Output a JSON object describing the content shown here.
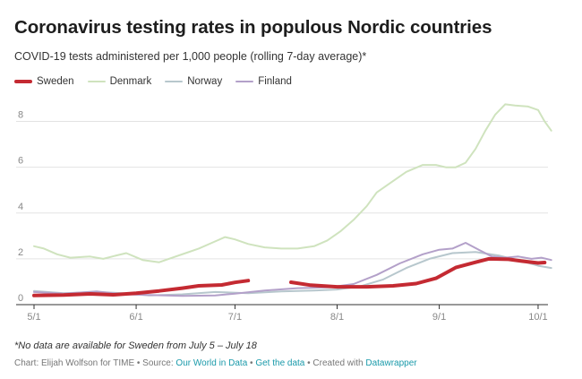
{
  "title": "Coronavirus testing rates in populous Nordic countries",
  "subtitle": "COVID-19 tests administered per 1,000 people (rolling 7-day average)*",
  "footnote": "*No data are available for Sweden from July 5 – July 18",
  "credits": {
    "prefix": "Chart: Elijah Wolfson for TIME • Source: ",
    "source": "Our World in Data",
    "sep1": " • ",
    "getdata": "Get the data",
    "sep2": " • Created with ",
    "tool": "Datawrapper"
  },
  "colors": {
    "Sweden": "#c42a32",
    "Denmark": "#cfe3be",
    "Norway": "#b7c7cd",
    "Finland": "#b3a0c9",
    "grid": "#e3e3e3",
    "axis": "#333333",
    "tick_text": "#888888"
  },
  "chart_data": {
    "type": "line",
    "x_unit": "date (2020)",
    "xlim": [
      "2020-05-01",
      "2020-10-04"
    ],
    "ylim": [
      0,
      9
    ],
    "yticks": [
      0,
      2,
      4,
      6,
      8
    ],
    "xticks": [
      {
        "date": "2020-05-01",
        "label": "5/1"
      },
      {
        "date": "2020-06-01",
        "label": "6/1"
      },
      {
        "date": "2020-07-01",
        "label": "7/1"
      },
      {
        "date": "2020-08-01",
        "label": "8/1"
      },
      {
        "date": "2020-09-01",
        "label": "9/1"
      },
      {
        "date": "2020-10-01",
        "label": "10/1"
      }
    ],
    "grid": true,
    "legend": "top-left",
    "series": [
      {
        "name": "Sweden",
        "segments": [
          [
            [
              "2020-05-01",
              0.4
            ],
            [
              "2020-05-10",
              0.42
            ],
            [
              "2020-05-18",
              0.47
            ],
            [
              "2020-05-25",
              0.43
            ],
            [
              "2020-06-01",
              0.5
            ],
            [
              "2020-06-08",
              0.6
            ],
            [
              "2020-06-15",
              0.72
            ],
            [
              "2020-06-20",
              0.82
            ],
            [
              "2020-06-27",
              0.86
            ],
            [
              "2020-07-01",
              0.97
            ],
            [
              "2020-07-05",
              1.05
            ]
          ],
          [
            [
              "2020-07-18",
              0.98
            ],
            [
              "2020-07-24",
              0.85
            ],
            [
              "2020-08-01",
              0.78
            ],
            [
              "2020-08-10",
              0.78
            ],
            [
              "2020-08-18",
              0.82
            ],
            [
              "2020-08-25",
              0.92
            ],
            [
              "2020-08-31",
              1.15
            ],
            [
              "2020-09-06",
              1.62
            ],
            [
              "2020-09-12",
              1.85
            ],
            [
              "2020-09-16",
              2.0
            ],
            [
              "2020-09-22",
              1.98
            ],
            [
              "2020-09-26",
              1.9
            ],
            [
              "2020-10-01",
              1.82
            ],
            [
              "2020-10-03",
              1.84
            ]
          ]
        ]
      },
      {
        "name": "Denmark",
        "segments": [
          [
            [
              "2020-05-01",
              2.55
            ],
            [
              "2020-05-04",
              2.45
            ],
            [
              "2020-05-08",
              2.2
            ],
            [
              "2020-05-12",
              2.05
            ],
            [
              "2020-05-18",
              2.1
            ],
            [
              "2020-05-22",
              2.0
            ],
            [
              "2020-05-26",
              2.15
            ],
            [
              "2020-05-29",
              2.25
            ],
            [
              "2020-06-03",
              1.95
            ],
            [
              "2020-06-08",
              1.85
            ],
            [
              "2020-06-12",
              2.05
            ],
            [
              "2020-06-16",
              2.25
            ],
            [
              "2020-06-20",
              2.45
            ],
            [
              "2020-06-24",
              2.7
            ],
            [
              "2020-06-28",
              2.95
            ],
            [
              "2020-07-01",
              2.85
            ],
            [
              "2020-07-05",
              2.65
            ],
            [
              "2020-07-10",
              2.5
            ],
            [
              "2020-07-15",
              2.45
            ],
            [
              "2020-07-20",
              2.45
            ],
            [
              "2020-07-25",
              2.55
            ],
            [
              "2020-07-29",
              2.8
            ],
            [
              "2020-08-02",
              3.2
            ],
            [
              "2020-08-06",
              3.7
            ],
            [
              "2020-08-10",
              4.3
            ],
            [
              "2020-08-13",
              4.9
            ],
            [
              "2020-08-17",
              5.3
            ],
            [
              "2020-08-22",
              5.8
            ],
            [
              "2020-08-27",
              6.1
            ],
            [
              "2020-08-31",
              6.1
            ],
            [
              "2020-09-03",
              6.0
            ],
            [
              "2020-09-06",
              6.0
            ],
            [
              "2020-09-09",
              6.2
            ],
            [
              "2020-09-12",
              6.8
            ],
            [
              "2020-09-15",
              7.6
            ],
            [
              "2020-09-18",
              8.3
            ],
            [
              "2020-09-21",
              8.75
            ],
            [
              "2020-09-24",
              8.7
            ],
            [
              "2020-09-28",
              8.65
            ],
            [
              "2020-10-01",
              8.5
            ],
            [
              "2020-10-03",
              8.0
            ],
            [
              "2020-10-05",
              7.6
            ]
          ]
        ]
      },
      {
        "name": "Norway",
        "segments": [
          [
            [
              "2020-05-01",
              0.6
            ],
            [
              "2020-05-10",
              0.5
            ],
            [
              "2020-05-20",
              0.55
            ],
            [
              "2020-05-28",
              0.5
            ],
            [
              "2020-06-05",
              0.4
            ],
            [
              "2020-06-15",
              0.45
            ],
            [
              "2020-06-25",
              0.55
            ],
            [
              "2020-07-05",
              0.5
            ],
            [
              "2020-07-15",
              0.58
            ],
            [
              "2020-07-25",
              0.62
            ],
            [
              "2020-08-01",
              0.66
            ],
            [
              "2020-08-08",
              0.8
            ],
            [
              "2020-08-15",
              1.1
            ],
            [
              "2020-08-22",
              1.6
            ],
            [
              "2020-08-29",
              2.0
            ],
            [
              "2020-09-05",
              2.25
            ],
            [
              "2020-09-12",
              2.3
            ],
            [
              "2020-09-19",
              2.15
            ],
            [
              "2020-09-26",
              1.9
            ],
            [
              "2020-10-01",
              1.7
            ],
            [
              "2020-10-05",
              1.6
            ]
          ]
        ]
      },
      {
        "name": "Finland",
        "segments": [
          [
            [
              "2020-05-01",
              0.55
            ],
            [
              "2020-05-10",
              0.48
            ],
            [
              "2020-05-20",
              0.58
            ],
            [
              "2020-05-28",
              0.45
            ],
            [
              "2020-06-05",
              0.42
            ],
            [
              "2020-06-15",
              0.38
            ],
            [
              "2020-06-25",
              0.4
            ],
            [
              "2020-07-01",
              0.48
            ],
            [
              "2020-07-10",
              0.62
            ],
            [
              "2020-07-20",
              0.72
            ],
            [
              "2020-07-30",
              0.76
            ],
            [
              "2020-08-06",
              0.9
            ],
            [
              "2020-08-13",
              1.3
            ],
            [
              "2020-08-20",
              1.8
            ],
            [
              "2020-08-27",
              2.2
            ],
            [
              "2020-09-01",
              2.4
            ],
            [
              "2020-09-05",
              2.45
            ],
            [
              "2020-09-09",
              2.7
            ],
            [
              "2020-09-13",
              2.4
            ],
            [
              "2020-09-17",
              2.1
            ],
            [
              "2020-09-21",
              2.05
            ],
            [
              "2020-09-25",
              2.1
            ],
            [
              "2020-09-29",
              2.0
            ],
            [
              "2020-10-02",
              2.05
            ],
            [
              "2020-10-05",
              1.95
            ]
          ]
        ]
      }
    ]
  }
}
